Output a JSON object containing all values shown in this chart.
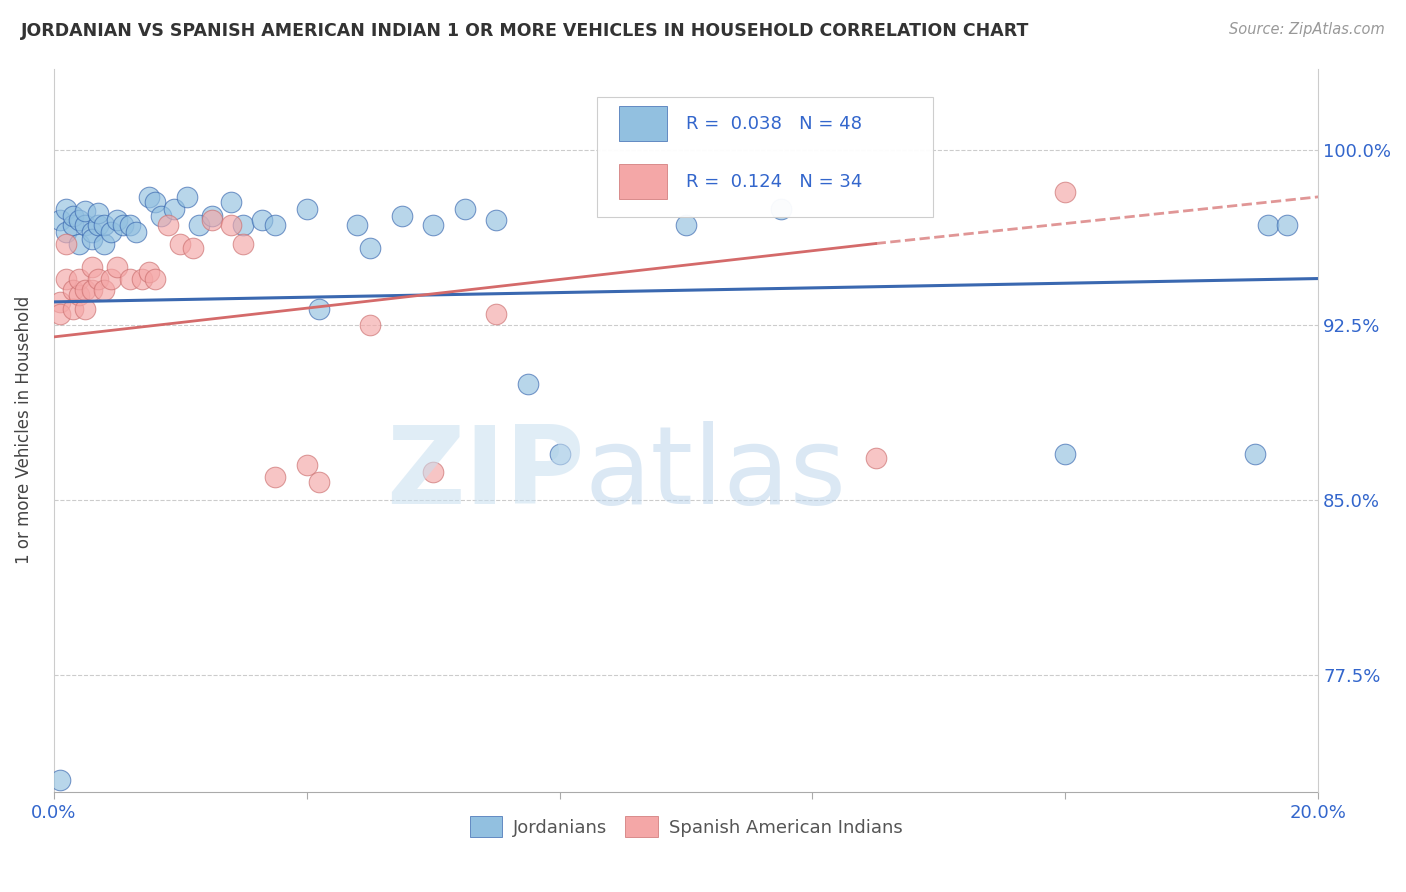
{
  "title": "JORDANIAN VS SPANISH AMERICAN INDIAN 1 OR MORE VEHICLES IN HOUSEHOLD CORRELATION CHART",
  "source": "Source: ZipAtlas.com",
  "ylabel": "1 or more Vehicles in Household",
  "ytick_labels": [
    "77.5%",
    "85.0%",
    "92.5%",
    "100.0%"
  ],
  "ytick_values": [
    0.775,
    0.85,
    0.925,
    1.0
  ],
  "xlim": [
    0.0,
    0.2
  ],
  "ylim": [
    0.725,
    1.035
  ],
  "blue_color": "#92c0e0",
  "pink_color": "#f4a7a7",
  "blue_line_color": "#3a68b0",
  "pink_line_color": "#d46a6a",
  "jordanian_x": [
    0.001,
    0.002,
    0.002,
    0.003,
    0.003,
    0.004,
    0.004,
    0.005,
    0.005,
    0.006,
    0.006,
    0.007,
    0.007,
    0.008,
    0.008,
    0.009,
    0.01,
    0.011,
    0.012,
    0.013,
    0.015,
    0.016,
    0.017,
    0.019,
    0.021,
    0.023,
    0.025,
    0.028,
    0.03,
    0.033,
    0.035,
    0.04,
    0.042,
    0.048,
    0.05,
    0.055,
    0.06,
    0.065,
    0.07,
    0.075,
    0.001,
    0.08,
    0.1,
    0.115,
    0.16,
    0.19,
    0.192,
    0.195
  ],
  "jordanian_y": [
    0.97,
    0.965,
    0.975,
    0.968,
    0.972,
    0.97,
    0.96,
    0.968,
    0.974,
    0.965,
    0.962,
    0.968,
    0.973,
    0.96,
    0.968,
    0.965,
    0.97,
    0.968,
    0.968,
    0.965,
    0.98,
    0.978,
    0.972,
    0.975,
    0.98,
    0.968,
    0.972,
    0.978,
    0.968,
    0.97,
    0.968,
    0.975,
    0.932,
    0.968,
    0.958,
    0.972,
    0.968,
    0.975,
    0.97,
    0.9,
    0.73,
    0.87,
    0.968,
    0.975,
    0.87,
    0.87,
    0.968,
    0.968
  ],
  "spanish_ai_x": [
    0.001,
    0.001,
    0.002,
    0.002,
    0.003,
    0.003,
    0.004,
    0.004,
    0.005,
    0.005,
    0.006,
    0.006,
    0.007,
    0.008,
    0.009,
    0.01,
    0.012,
    0.014,
    0.015,
    0.016,
    0.018,
    0.02,
    0.022,
    0.025,
    0.028,
    0.03,
    0.035,
    0.04,
    0.042,
    0.05,
    0.06,
    0.07,
    0.13,
    0.16
  ],
  "spanish_ai_y": [
    0.935,
    0.93,
    0.96,
    0.945,
    0.94,
    0.932,
    0.938,
    0.945,
    0.932,
    0.94,
    0.94,
    0.95,
    0.945,
    0.94,
    0.945,
    0.95,
    0.945,
    0.945,
    0.948,
    0.945,
    0.968,
    0.96,
    0.958,
    0.97,
    0.968,
    0.96,
    0.86,
    0.865,
    0.858,
    0.925,
    0.862,
    0.93,
    0.868,
    0.982
  ]
}
